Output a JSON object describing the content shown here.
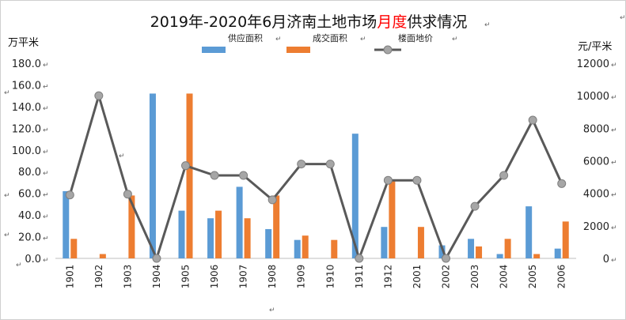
{
  "chart_data": {
    "type": "bar+line",
    "title_parts": [
      "2019年-2020年6月济南土地市场",
      "月度",
      "供求情况"
    ],
    "ylabel_left": "万平米",
    "ylabel_right": "元/平米",
    "categories": [
      "1901",
      "1902",
      "1903",
      "1904",
      "1905",
      "1906",
      "1907",
      "1908",
      "1909",
      "1910",
      "1911",
      "1912",
      "2001",
      "2002",
      "2003",
      "2004",
      "2005",
      "2006"
    ],
    "series": [
      {
        "name": "供应面积",
        "type": "bar",
        "axis": "left",
        "color": "#5b9bd5",
        "values": [
          62,
          0,
          0,
          152,
          44,
          37,
          66,
          27,
          17,
          0,
          115,
          29,
          0,
          12,
          18,
          4,
          48,
          9
        ]
      },
      {
        "name": "成交面积",
        "type": "bar",
        "axis": "left",
        "color": "#ed7d31",
        "values": [
          18,
          4,
          58,
          0,
          152,
          44,
          37,
          58,
          21,
          17,
          0,
          72,
          29,
          0,
          11,
          18,
          4,
          34
        ]
      },
      {
        "name": "楼面地价",
        "type": "line",
        "axis": "right",
        "color": "#595959",
        "values": [
          3900,
          10000,
          3950,
          0,
          5700,
          5100,
          5100,
          3600,
          5800,
          5800,
          0,
          4800,
          4800,
          0,
          3200,
          5100,
          8500,
          4600
        ]
      }
    ],
    "ylim_left": [
      0,
      180
    ],
    "yticks_left": [
      "0.0",
      "20.0",
      "40.0",
      "60.0",
      "80.0",
      "100.0",
      "120.0",
      "140.0",
      "160.0",
      "180.0"
    ],
    "ylim_right": [
      0,
      12000
    ],
    "yticks_right": [
      "0",
      "2000",
      "4000",
      "6000",
      "8000",
      "10000",
      "12000"
    ],
    "grid": false,
    "legend_position": "top"
  }
}
